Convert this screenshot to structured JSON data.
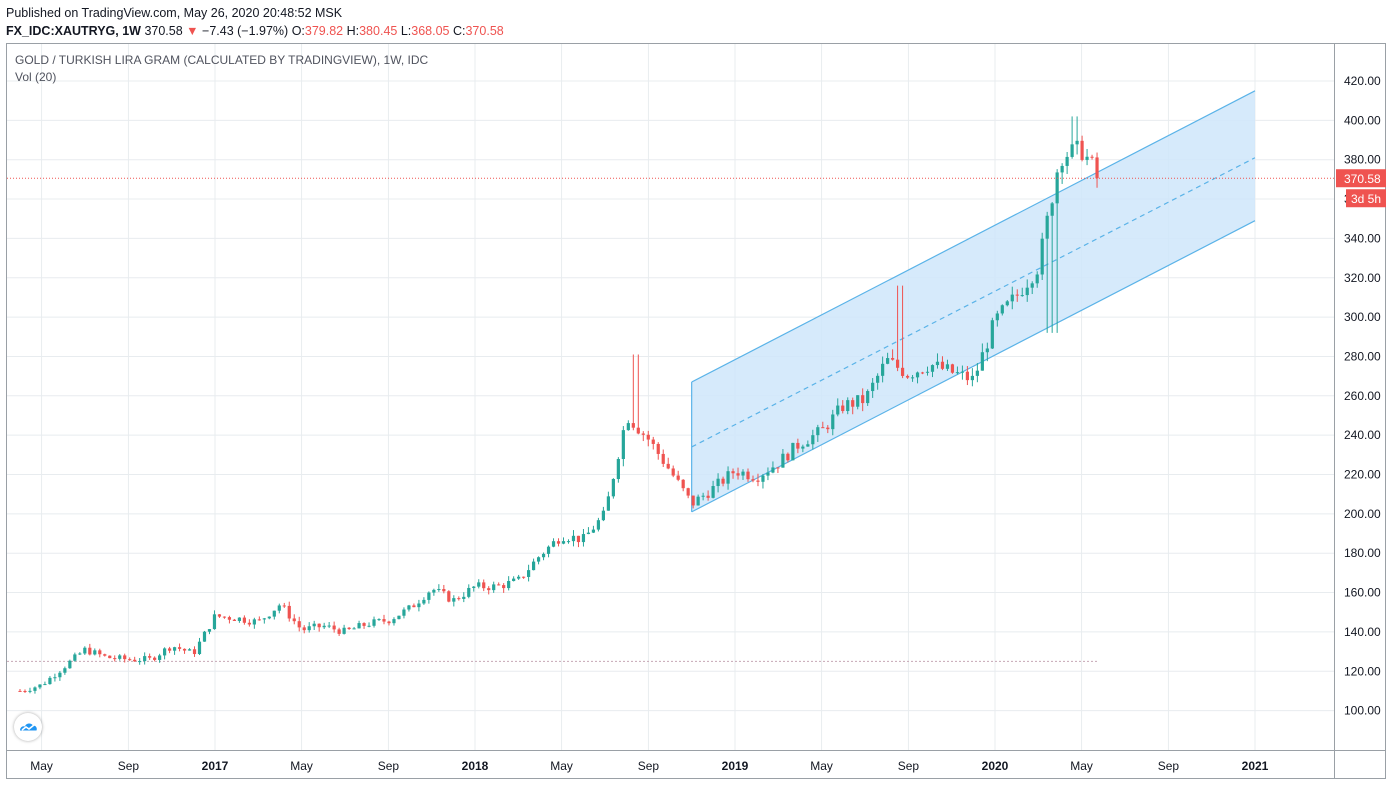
{
  "header": {
    "published": "Published on TradingView.com, May 26, 2020 20:48:52 MSK",
    "symbol": "FX_IDC:XAUTRYG, 1W",
    "last": "370.58",
    "arrow": "▼",
    "change": "−7.43 (−1.97%)",
    "o_label": "O:",
    "o": "379.82",
    "h_label": "H:",
    "h": "380.45",
    "l_label": "L:",
    "l": "368.05",
    "c_label": "C:",
    "c": "370.58"
  },
  "chart_title": "GOLD / TURKISH LIRA GRAM (CALCULATED BY TRADINGVIEW), 1W, IDC",
  "volume_label": "Vol (20)",
  "price_tag": "370.58",
  "countdown_tag": "3d 5h",
  "logo_icon": "tradingview-cloud-icon",
  "colors": {
    "up": "#26a69a",
    "down": "#ef5350",
    "channel": "#5ab3e8",
    "channel_fill": "#cfe6fa",
    "grid": "#e8ecef"
  },
  "chart_data": {
    "type": "candlestick",
    "title": "GOLD / TURKISH LIRA GRAM (CALCULATED BY TRADINGVIEW), 1W, IDC",
    "interval": "1W",
    "ylim": [
      85,
      430
    ],
    "y_ticks": [
      "100.00",
      "120.00",
      "140.00",
      "160.00",
      "180.00",
      "200.00",
      "220.00",
      "240.00",
      "260.00",
      "280.00",
      "300.00",
      "320.00",
      "340.00",
      "360.00",
      "380.00",
      "400.00",
      "420.00"
    ],
    "x_ticks": [
      "May",
      "Sep",
      "2017",
      "May",
      "Sep",
      "2018",
      "May",
      "Sep",
      "2019",
      "May",
      "Sep",
      "2020",
      "May",
      "Sep",
      "2021"
    ],
    "bold_x_ticks": [
      "2017",
      "2018",
      "2019",
      "2020",
      "2021"
    ],
    "last_price": 370.58,
    "channel": {
      "start": "2018-11",
      "end": "2021-01",
      "upper": [
        267,
        415
      ],
      "middle": [
        234,
        381
      ],
      "lower": [
        201,
        349
      ]
    },
    "reference_line": 125,
    "close_path": [
      [
        "2016-04",
        110
      ],
      [
        "2016-05",
        113
      ],
      [
        "2016-06",
        122
      ],
      [
        "2016-07",
        131
      ],
      [
        "2016-08",
        127
      ],
      [
        "2016-09",
        126
      ],
      [
        "2016-10",
        126
      ],
      [
        "2016-11",
        133
      ],
      [
        "2016-12",
        129
      ],
      [
        "2017-01",
        148
      ],
      [
        "2017-02",
        147
      ],
      [
        "2017-03",
        145
      ],
      [
        "2017-04",
        154
      ],
      [
        "2017-05",
        141
      ],
      [
        "2017-06",
        143
      ],
      [
        "2017-07",
        140
      ],
      [
        "2017-08",
        144
      ],
      [
        "2017-09",
        146
      ],
      [
        "2017-10",
        152
      ],
      [
        "2017-11",
        162
      ],
      [
        "2017-12",
        156
      ],
      [
        "2018-01",
        163
      ],
      [
        "2018-02",
        163
      ],
      [
        "2018-03",
        166
      ],
      [
        "2018-04",
        179
      ],
      [
        "2018-05",
        189
      ],
      [
        "2018-06",
        187
      ],
      [
        "2018-07",
        200
      ],
      [
        "2018-08",
        250
      ],
      [
        "2018-09",
        238
      ],
      [
        "2018-10",
        222
      ],
      [
        "2018-11",
        205
      ],
      [
        "2018-12",
        213
      ],
      [
        "2019-01",
        222
      ],
      [
        "2019-02",
        219
      ],
      [
        "2019-03",
        226
      ],
      [
        "2019-04",
        236
      ],
      [
        "2019-05",
        242
      ],
      [
        "2019-06",
        255
      ],
      [
        "2019-07",
        258
      ],
      [
        "2019-08",
        278
      ],
      [
        "2019-09",
        271
      ],
      [
        "2019-10",
        276
      ],
      [
        "2019-11",
        272
      ],
      [
        "2019-12",
        268
      ],
      [
        "2020-01",
        298
      ],
      [
        "2020-02",
        311
      ],
      [
        "2020-03",
        326
      ],
      [
        "2020-04",
        382
      ],
      [
        "2020-05",
        385
      ],
      [
        "2020-05-26",
        370.58
      ]
    ]
  }
}
